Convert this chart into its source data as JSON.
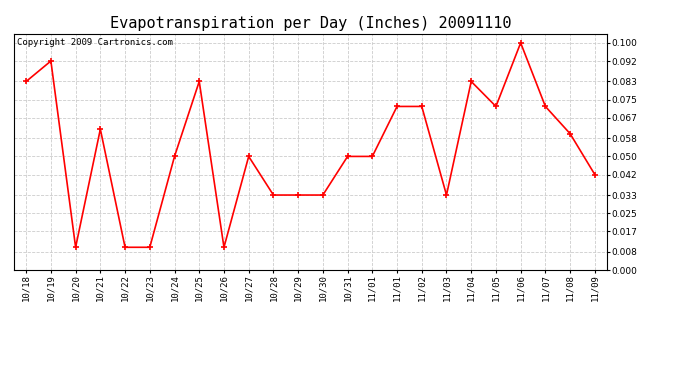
{
  "title": "Evapotranspiration per Day (Inches) 20091110",
  "copyright_text": "Copyright 2009 Cartronics.com",
  "x_labels": [
    "10/18",
    "10/19",
    "10/20",
    "10/21",
    "10/22",
    "10/23",
    "10/24",
    "10/25",
    "10/26",
    "10/27",
    "10/28",
    "10/29",
    "10/30",
    "10/31",
    "11/01",
    "11/01",
    "11/02",
    "11/03",
    "11/04",
    "11/05",
    "11/06",
    "11/07",
    "11/08",
    "11/09"
  ],
  "values": [
    0.083,
    0.092,
    0.01,
    0.062,
    0.01,
    0.01,
    0.05,
    0.083,
    0.01,
    0.05,
    0.033,
    0.033,
    0.033,
    0.05,
    0.05,
    0.072,
    0.072,
    0.033,
    0.083,
    0.072,
    0.1,
    0.072,
    0.06,
    0.042
  ],
  "y_ticks": [
    0.0,
    0.008,
    0.017,
    0.025,
    0.033,
    0.042,
    0.05,
    0.058,
    0.067,
    0.075,
    0.083,
    0.092,
    0.1
  ],
  "ylim": [
    0.0,
    0.104
  ],
  "line_color": "#ff0000",
  "marker": "+",
  "marker_size": 5,
  "marker_linewidth": 1.2,
  "line_width": 1.2,
  "bg_color": "#ffffff",
  "plot_bg_color": "#ffffff",
  "grid_color": "#cccccc",
  "title_fontsize": 11,
  "tick_fontsize": 6.5,
  "copyright_fontsize": 6.5,
  "border_color": "#000000"
}
